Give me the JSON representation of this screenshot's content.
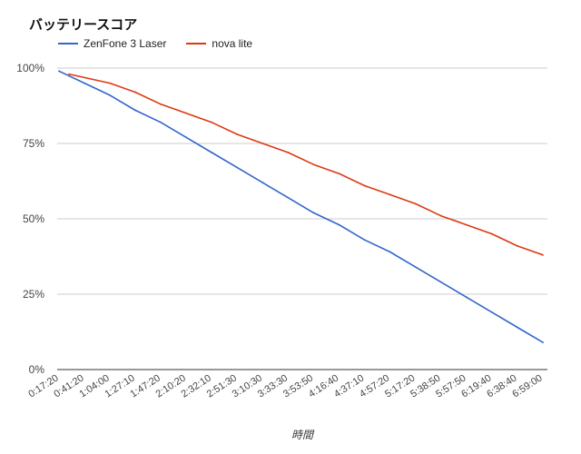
{
  "chart_data": {
    "type": "line",
    "title": "バッテリースコア",
    "xlabel": "時間",
    "ylabel": "",
    "ylim": [
      0,
      100
    ],
    "yticks": [
      "0%",
      "25%",
      "50%",
      "75%",
      "100%"
    ],
    "ytick_values": [
      0,
      25,
      50,
      75,
      100
    ],
    "grid": true,
    "legend_position": "top-left",
    "x": [
      "0:17:20",
      "0:41:20",
      "1:04:00",
      "1:27:10",
      "1:47:20",
      "2:10:20",
      "2:32:10",
      "2:51:30",
      "3:10:30",
      "3:33:30",
      "3:53:50",
      "4:16:40",
      "4:37:10",
      "4:57:20",
      "5:17:20",
      "5:38:50",
      "5:57:50",
      "6:19:40",
      "6:38:40",
      "6:59:00"
    ],
    "series": [
      {
        "name": "ZenFone 3 Laser",
        "color": "#3366cc",
        "values": [
          99,
          95,
          91,
          86,
          82,
          77,
          72,
          67,
          62,
          57,
          52,
          48,
          43,
          39,
          34,
          29,
          24,
          19,
          14,
          9
        ]
      },
      {
        "name": "nova lite",
        "color": "#dc3912",
        "values": [
          null,
          98,
          95,
          92,
          88,
          85,
          82,
          78,
          75,
          72,
          68,
          65,
          61,
          58,
          55,
          51,
          48,
          45,
          41,
          38
        ]
      }
    ]
  }
}
